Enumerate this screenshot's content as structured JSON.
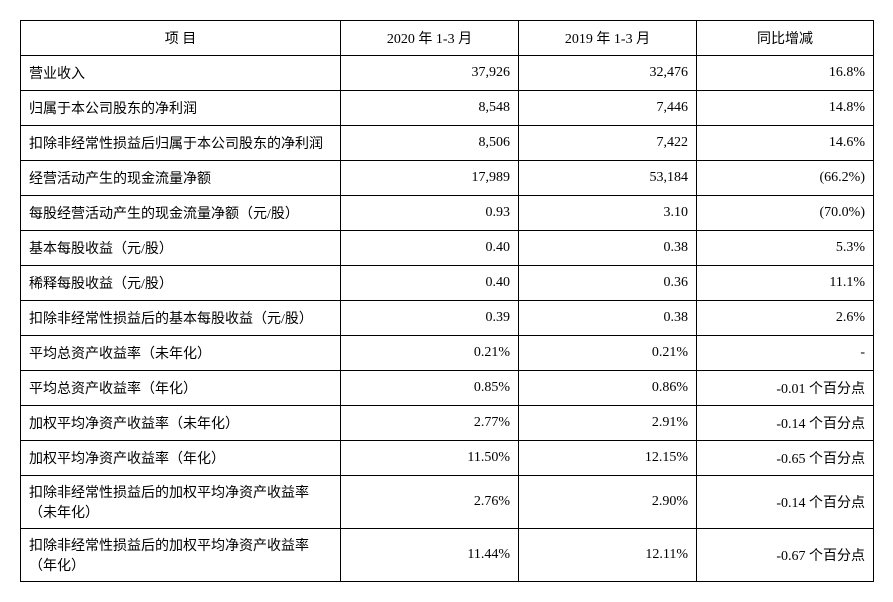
{
  "table": {
    "columns": [
      "项  目",
      "2020 年 1-3 月",
      "2019 年 1-3 月",
      "同比增减"
    ],
    "col_align": [
      "center",
      "center",
      "center",
      "center"
    ],
    "rows": [
      [
        "营业收入",
        "37,926",
        "32,476",
        "16.8%"
      ],
      [
        "归属于本公司股东的净利润",
        "8,548",
        "7,446",
        "14.8%"
      ],
      [
        "扣除非经常性损益后归属于本公司股东的净利润",
        "8,506",
        "7,422",
        "14.6%"
      ],
      [
        "经营活动产生的现金流量净额",
        "17,989",
        "53,184",
        "(66.2%)"
      ],
      [
        "每股经营活动产生的现金流量净额（元/股）",
        "0.93",
        "3.10",
        "(70.0%)"
      ],
      [
        "基本每股收益（元/股）",
        "0.40",
        "0.38",
        "5.3%"
      ],
      [
        "稀释每股收益（元/股）",
        "0.40",
        "0.36",
        "11.1%"
      ],
      [
        "扣除非经常性损益后的基本每股收益（元/股）",
        "0.39",
        "0.38",
        "2.6%"
      ],
      [
        "平均总资产收益率（未年化）",
        "0.21%",
        "0.21%",
        "-"
      ],
      [
        "平均总资产收益率（年化）",
        "0.85%",
        "0.86%",
        "-0.01 个百分点"
      ],
      [
        "加权平均净资产收益率（未年化）",
        "2.77%",
        "2.91%",
        "-0.14 个百分点"
      ],
      [
        "加权平均净资产收益率（年化）",
        "11.50%",
        "12.15%",
        "-0.65 个百分点"
      ],
      [
        "扣除非经常性损益后的加权平均净资产收益率（未年化）",
        "2.76%",
        "2.90%",
        "-0.14 个百分点"
      ],
      [
        "扣除非经常性损益后的加权平均净资产收益率（年化）",
        "11.44%",
        "12.11%",
        "-0.67 个百分点"
      ]
    ],
    "border_color": "#000000",
    "background_color": "#ffffff",
    "font_size": 14
  }
}
